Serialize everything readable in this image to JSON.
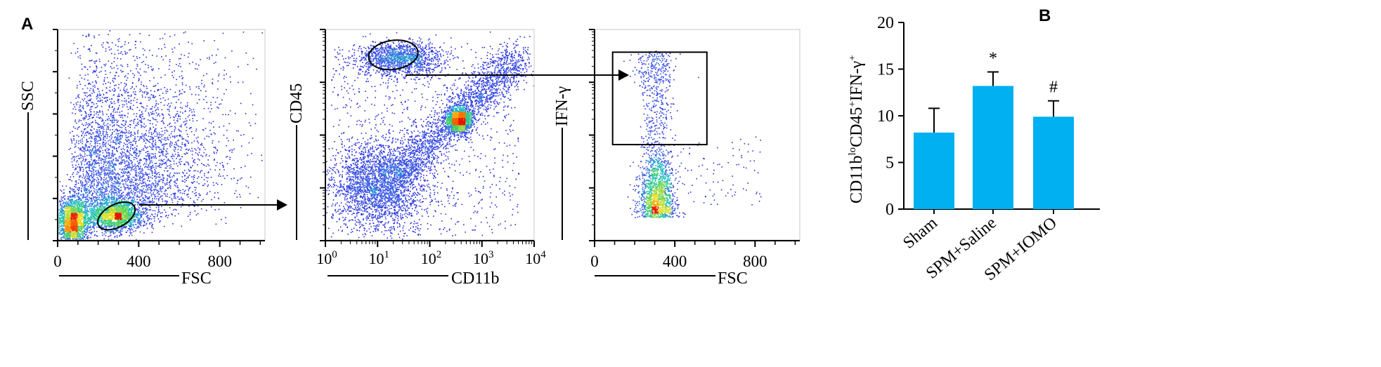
{
  "panel_a_label": "A",
  "panel_b_label": "B",
  "colors": {
    "bar_fill": "#00b0f0",
    "dot_low": "#2a2ad8",
    "dot_mid": "#22c9a0",
    "dot_high": "#ff2a00",
    "axis": "#000000"
  },
  "chart_data": [
    {
      "type": "scatter",
      "panel": "A-1",
      "xlabel": "FSC",
      "ylabel": "SSC",
      "x_ticks": [
        "0",
        "400",
        "800"
      ],
      "x_tick_values": [
        0,
        400,
        800
      ],
      "xlim": [
        0,
        1023
      ],
      "ylim": [
        0,
        1023
      ],
      "gate": "ellipse",
      "gate_center": [
        290,
        120
      ],
      "gate_radii": [
        200,
        110
      ],
      "gate_tilt_deg": -28
    },
    {
      "type": "scatter",
      "panel": "A-2",
      "xlabel": "CD11b",
      "ylabel": "CD45",
      "x_scale": "log",
      "x_ticks": [
        {
          "base": "10",
          "exp": "0"
        },
        {
          "base": "10",
          "exp": "1"
        },
        {
          "base": "10",
          "exp": "2"
        },
        {
          "base": "10",
          "exp": "3"
        },
        {
          "base": "10",
          "exp": "4"
        }
      ],
      "x_tick_values": [
        1,
        10,
        100,
        1000,
        10000
      ],
      "xlim": [
        1,
        10000
      ],
      "y_scale": "log",
      "ylim": [
        1,
        10000
      ],
      "gate": "ellipse",
      "gate_center": [
        20,
        3300
      ],
      "gate_radii_decades": [
        0.95,
        0.55
      ],
      "gate_tilt_deg": -8
    },
    {
      "type": "scatter",
      "panel": "A-3",
      "xlabel": "FSC",
      "ylabel": "IFN-γ",
      "x_ticks": [
        "0",
        "400",
        "800"
      ],
      "x_tick_values": [
        0,
        400,
        800
      ],
      "xlim": [
        0,
        1023
      ],
      "y_scale": "log",
      "ylim": [
        1,
        10000
      ],
      "gate": "rectangle",
      "gate_x": [
        90,
        560
      ],
      "gate_y_log": [
        3.57,
        1.82
      ]
    },
    {
      "type": "bar",
      "panel": "B",
      "categories": [
        "Sham",
        "SPM+Saline",
        "SPM+IOMO"
      ],
      "values": [
        8.2,
        13.2,
        9.9
      ],
      "errors": [
        2.6,
        1.5,
        1.7
      ],
      "annotations": [
        "",
        "*",
        "#"
      ],
      "ylabel": {
        "main": "CD11b",
        "sup1": "lo",
        "mid": "CD45",
        "sup2": "+",
        "tail": "IFN-γ",
        "sup3": "+"
      },
      "y_ticks": [
        "0",
        "5",
        "10",
        "15",
        "20"
      ],
      "y_tick_values": [
        0,
        5,
        10,
        15,
        20
      ],
      "ylim": [
        0,
        20
      ]
    }
  ]
}
